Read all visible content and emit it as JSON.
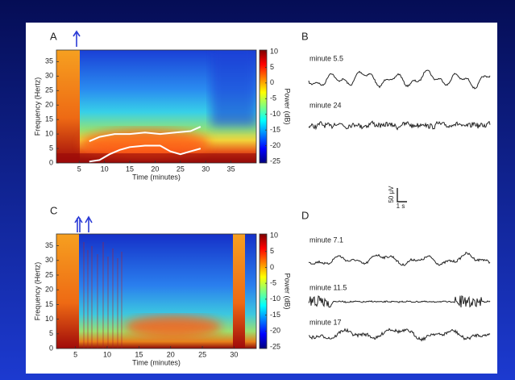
{
  "chart_data": [
    {
      "type": "spectrogram",
      "panel": "A",
      "xlabel": "Time (minutes)",
      "ylabel": "Frequency (Hertz)",
      "colorbar_label": "Power (dB)",
      "xlim": [
        0.5,
        40
      ],
      "xticks": [
        5,
        10,
        15,
        20,
        25,
        30,
        35
      ],
      "ylim": [
        0,
        39
      ],
      "yticks": [
        0,
        5,
        10,
        15,
        20,
        25,
        30,
        35
      ],
      "clim": [
        -25.5,
        10.5
      ],
      "cticks": [
        10,
        5,
        0,
        -5,
        -10,
        -15,
        -20,
        -25
      ],
      "series": [
        {
          "color": "#ffffff",
          "x": [
            7,
            9,
            12,
            15,
            18,
            21,
            24,
            27,
            29
          ],
          "values": [
            7.5,
            9,
            10,
            10,
            10.5,
            10,
            10.5,
            11,
            12.5
          ]
        },
        {
          "color": "#ffffff",
          "x": [
            7,
            9,
            11,
            13,
            15,
            18,
            21,
            23,
            25,
            27,
            29
          ],
          "values": [
            0.5,
            1,
            3,
            4.5,
            5.5,
            6,
            6,
            4,
            3,
            4,
            5
          ]
        }
      ]
    },
    {
      "type": "spectrogram",
      "panel": "C",
      "xlabel": "Time (minutes)",
      "ylabel": "Frequency (Hertz)",
      "colorbar_label": "Power (dB)",
      "xlim": [
        2,
        33.5
      ],
      "xticks": [
        5,
        10,
        15,
        20,
        25,
        30
      ],
      "ylim": [
        0,
        39
      ],
      "yticks": [
        0,
        5,
        10,
        15,
        20,
        25,
        30,
        35
      ],
      "clim": [
        -25.5,
        10.5
      ],
      "cticks": [
        10,
        5,
        0,
        -5,
        -10,
        -15,
        -20,
        -25
      ]
    }
  ],
  "traces": [
    {
      "panel": "B",
      "labels": [
        "minute 5.5",
        "minute 24"
      ]
    },
    {
      "panel": "D",
      "labels": [
        "minute 7.1",
        "minute 11.5",
        "minute 17"
      ]
    }
  ],
  "scale_bar": {
    "amplitude": "50 μV",
    "time": "1 s"
  }
}
